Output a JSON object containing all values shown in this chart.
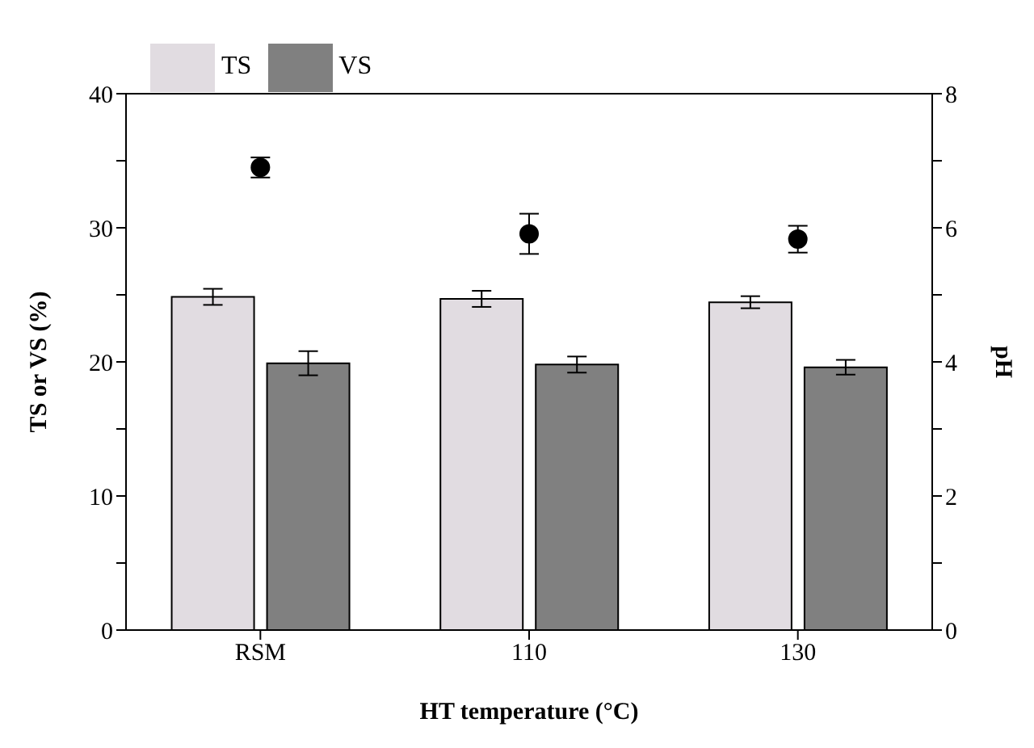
{
  "chart_data": {
    "type": "bar",
    "xlabel": "HT temperature (°C)",
    "ylabel": "TS or VS (%)",
    "y2label": "pH",
    "categories": [
      "RSM",
      "110",
      "130"
    ],
    "series": [
      {
        "name": "TS",
        "color": "#e1dce1",
        "values": [
          24.85,
          24.7,
          24.45
        ],
        "errors": [
          0.6,
          0.6,
          0.45
        ]
      },
      {
        "name": "VS",
        "color": "#808080",
        "values": [
          19.9,
          19.8,
          19.6
        ],
        "errors": [
          0.9,
          0.6,
          0.55
        ]
      },
      {
        "type": "scatter",
        "axis": "y2",
        "color": "#000000",
        "marker": "circle",
        "values": [
          6.9,
          5.91,
          5.83
        ],
        "errors": [
          0.15,
          0.3,
          0.2
        ]
      }
    ],
    "ylim": [
      0,
      40
    ],
    "yticks": [
      0,
      {
        "value": 5,
        "label": null
      },
      10,
      {
        "value": 15,
        "label": null
      },
      20,
      {
        "value": 25,
        "label": null
      },
      30,
      {
        "value": 35,
        "label": null
      },
      40
    ],
    "y2lim": [
      0,
      8
    ],
    "y2ticks": [
      0,
      {
        "value": 1,
        "label": null
      },
      2,
      {
        "value": 3,
        "label": null
      },
      4,
      {
        "value": 5,
        "label": null
      },
      6,
      {
        "value": 7,
        "label": null
      },
      8
    ],
    "legend": "top left",
    "grid": false
  }
}
